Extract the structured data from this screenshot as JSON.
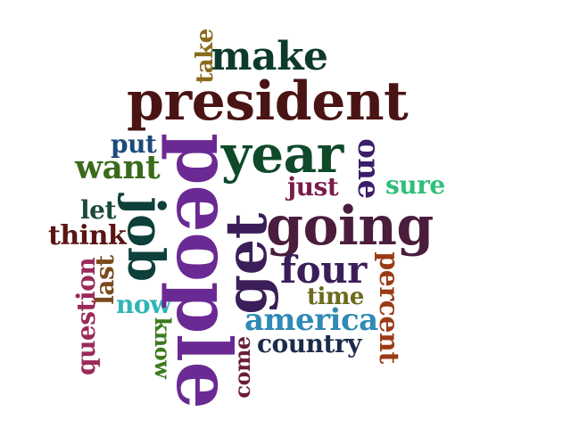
{
  "words": {
    "people": {
      "text": "people",
      "color": "#6b2a93"
    },
    "president": {
      "text": "president",
      "color": "#4a1414"
    },
    "year": {
      "text": "year",
      "color": "#0e4a2a"
    },
    "going": {
      "text": "going",
      "color": "#4a1d3d"
    },
    "get": {
      "text": "get",
      "color": "#3b1e59"
    },
    "job": {
      "text": "job",
      "color": "#0e3f3a"
    },
    "make": {
      "text": "make",
      "color": "#0e3a2e"
    },
    "want": {
      "text": "want",
      "color": "#3a6b1c"
    },
    "four": {
      "text": "four",
      "color": "#3b1e59"
    },
    "america": {
      "text": "america",
      "color": "#2f8ab5"
    },
    "country": {
      "text": "country",
      "color": "#1c2b4a"
    },
    "one": {
      "text": "one",
      "color": "#3b1e6b"
    },
    "put": {
      "text": "put",
      "color": "#1c4a7a"
    },
    "just": {
      "text": "just",
      "color": "#7a1c4a"
    },
    "sure": {
      "text": "sure",
      "color": "#2fbf7a"
    },
    "let": {
      "text": "let",
      "color": "#1c4a3a"
    },
    "think": {
      "text": "think",
      "color": "#5a1414"
    },
    "time": {
      "text": "time",
      "color": "#6b6b1c"
    },
    "now": {
      "text": "now",
      "color": "#2fb5b5"
    },
    "last": {
      "text": "last",
      "color": "#7a4a1c"
    },
    "question": {
      "text": "question",
      "color": "#9a2a5a"
    },
    "percent": {
      "text": "percent",
      "color": "#9a3a14"
    },
    "take": {
      "text": "take",
      "color": "#8a6b1c"
    },
    "know": {
      "text": "know",
      "color": "#3a7a1c"
    },
    "come": {
      "text": "come",
      "color": "#6b1c3a"
    }
  }
}
